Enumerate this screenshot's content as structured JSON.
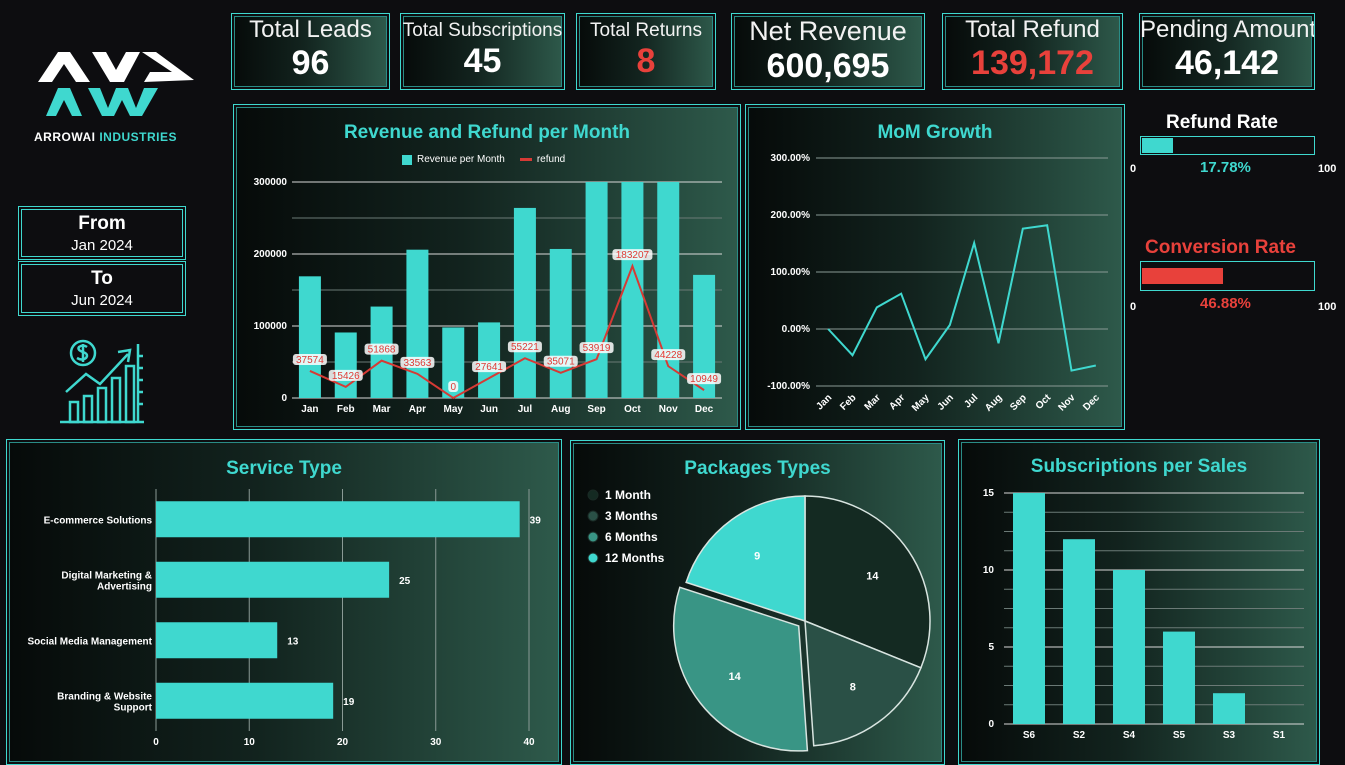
{
  "brand": {
    "logo_mark": "AW",
    "name_part1": "ARROWAI",
    "name_part2": "INDUSTRIES"
  },
  "date_range": {
    "from_label": "From",
    "from_value": "Jan 2024",
    "to_label": "To",
    "to_value": "Jun 2024"
  },
  "kpis": {
    "leads": {
      "label": "Total Leads",
      "value": "96"
    },
    "subscriptions": {
      "label": "Total Subscriptions",
      "value": "45"
    },
    "returns": {
      "label": "Total Returns",
      "value": "8"
    },
    "revenue": {
      "label": "Net Revenue",
      "value": "600,695"
    },
    "refund": {
      "label": "Total Refund",
      "value": "139,172"
    },
    "pending": {
      "label": "Pending Amount",
      "value": "46,142"
    }
  },
  "gauges": {
    "refund_rate": {
      "title": "Refund Rate",
      "value_text": "17.78%",
      "value": 0.1778,
      "min": "0",
      "max": "100",
      "color": "#3fd8cf"
    },
    "conversion_rate": {
      "title": "Conversion Rate",
      "value_text": "46.88%",
      "value": 0.4688,
      "min": "0",
      "max": "100",
      "color": "#e8413b"
    }
  },
  "colors": {
    "accent": "#3fd8cf",
    "alert": "#e8413b",
    "panel_dark": "#060a09",
    "panel_light": "#2e5a4b"
  },
  "icons": {
    "finance": "growth-chart-dollar-icon"
  },
  "chart_data": [
    {
      "id": "revenue-refund",
      "type": "bar",
      "title": "Revenue and Refund per Month",
      "categories": [
        "Jan",
        "Feb",
        "Mar",
        "Apr",
        "May",
        "Jun",
        "Jul",
        "Aug",
        "Sep",
        "Oct",
        "Nov",
        "Dec"
      ],
      "series": [
        {
          "name": "Revenue per Month",
          "type": "bar",
          "color": "#3fd8cf",
          "values": [
            169000,
            91000,
            127000,
            206000,
            98000,
            105000,
            264000,
            207000,
            300000,
            300000,
            300000,
            171000
          ]
        },
        {
          "name": "refund",
          "type": "line",
          "color": "#d63a35",
          "values": [
            37574,
            15426,
            51868,
            33563,
            0,
            27641,
            55221,
            35071,
            53919,
            183207,
            44228,
            10949
          ]
        }
      ],
      "y_ticks": [
        "0",
        "100000",
        "200000",
        "300000"
      ],
      "ylim": [
        0,
        300000
      ],
      "legend": "top"
    },
    {
      "id": "mom-growth",
      "type": "line",
      "title": "MoM Growth",
      "categories": [
        "Jan",
        "Feb",
        "Mar",
        "Apr",
        "May",
        "Jun",
        "Jul",
        "Aug",
        "Sep",
        "Oct",
        "Nov",
        "Dec"
      ],
      "values": [
        0,
        -46,
        38,
        62,
        -53,
        7,
        151,
        -25,
        176,
        182,
        -73,
        -64
      ],
      "y_ticks": [
        "-100.00%",
        "0.00%",
        "100.00%",
        "200.00%",
        "300.00%"
      ],
      "ylim": [
        -100,
        300
      ]
    },
    {
      "id": "service-type",
      "type": "bar",
      "orientation": "horizontal",
      "title": "Service Type",
      "categories": [
        "E-commerce Solutions",
        "Digital Marketing & Advertising",
        "Social Media Management",
        "Branding & Website Support"
      ],
      "values": [
        39,
        25,
        13,
        19
      ],
      "x_ticks": [
        "0",
        "10",
        "20",
        "30",
        "40"
      ],
      "xlim": [
        0,
        40
      ]
    },
    {
      "id": "package-types",
      "type": "pie",
      "title": "Packages Types",
      "categories": [
        "1 Month",
        "3 Months",
        "6 Months",
        "12 Months"
      ],
      "values": [
        14,
        8,
        14,
        9
      ],
      "colors": [
        "#142a22",
        "#2a5046",
        "#399585",
        "#3fd8cf"
      ],
      "legend": "top-left"
    },
    {
      "id": "subs-per-sales",
      "type": "bar",
      "title": "Subscriptions per Sales",
      "categories": [
        "S6",
        "S2",
        "S4",
        "S5",
        "S3",
        "S1"
      ],
      "values": [
        15,
        12,
        10,
        6,
        2,
        0
      ],
      "y_ticks": [
        "0",
        "5",
        "10",
        "15"
      ],
      "ylim": [
        0,
        15
      ]
    }
  ]
}
